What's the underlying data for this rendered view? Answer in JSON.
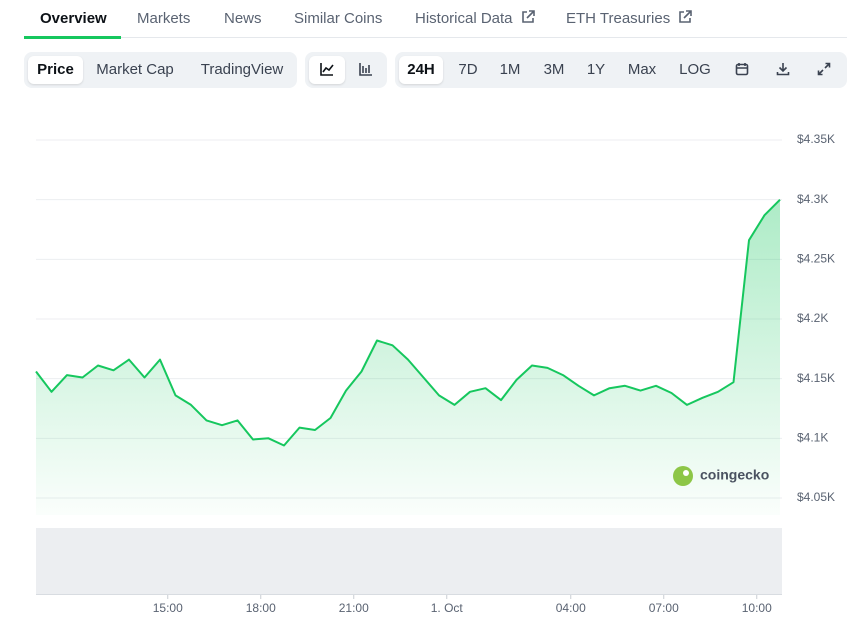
{
  "tabs": [
    "Overview",
    "Markets",
    "News",
    "Similar Coins",
    "Historical Data",
    "ETH Treasuries"
  ],
  "view_buttons": [
    "Price",
    "Market Cap",
    "TradingView"
  ],
  "range_buttons": [
    "24H",
    "7D",
    "1M",
    "3M",
    "1Y",
    "Max",
    "LOG"
  ],
  "chart_data": {
    "type": "area",
    "watermark": "coingecko",
    "color": "#16c75e",
    "x": [
      10.75,
      11.25,
      11.75,
      12.25,
      12.75,
      13.25,
      13.75,
      14.25,
      14.75,
      15.25,
      15.75,
      16.25,
      16.75,
      17.25,
      17.75,
      18.25,
      18.75,
      19.25,
      19.75,
      20.25,
      20.75,
      21.25,
      21.75,
      22.25,
      22.75,
      23.25,
      23.75,
      24.25,
      24.75,
      25.25,
      25.75,
      26.25,
      26.75,
      27.25,
      27.75,
      28.25,
      28.75,
      29.25,
      29.75,
      30.25,
      30.75,
      31.25,
      31.75,
      32.25,
      32.75,
      33.25,
      33.75,
      34.25,
      34.75
    ],
    "values": [
      4156,
      4139,
      4153,
      4151,
      4161,
      4157,
      4166,
      4151,
      4166,
      4136,
      4128,
      4115,
      4111,
      4115,
      4099,
      4100,
      4094,
      4109,
      4107,
      4117,
      4140,
      4156,
      4182,
      4178,
      4166,
      4151,
      4136,
      4128,
      4139,
      4142,
      4132,
      4149,
      4161,
      4159,
      4153,
      4144,
      4136,
      4142,
      4144,
      4140,
      4144,
      4138,
      4128,
      4134,
      4139,
      4147,
      4266,
      4287,
      4300
    ],
    "xlim": [
      10.75,
      34.75
    ],
    "xticks": [
      {
        "value": 15,
        "label": "15:00"
      },
      {
        "value": 18,
        "label": "18:00"
      },
      {
        "value": 21,
        "label": "21:00"
      },
      {
        "value": 24,
        "label": "1. Oct"
      },
      {
        "value": 28,
        "label": "04:00"
      },
      {
        "value": 31,
        "label": "07:00"
      },
      {
        "value": 34,
        "label": "10:00"
      }
    ],
    "ylim": [
      4050,
      4350
    ],
    "yticks": [
      {
        "value": 4050,
        "label": "$4.05K"
      },
      {
        "value": 4100,
        "label": "$4.1K"
      },
      {
        "value": 4150,
        "label": "$4.15K"
      },
      {
        "value": 4200,
        "label": "$4.2K"
      },
      {
        "value": 4250,
        "label": "$4.25K"
      },
      {
        "value": 4300,
        "label": "$4.3K"
      },
      {
        "value": 4350,
        "label": "$4.35K"
      }
    ],
    "grid": true
  }
}
